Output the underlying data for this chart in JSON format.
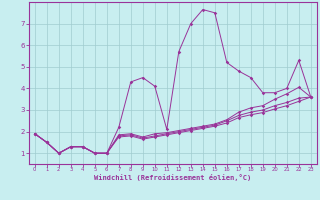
{
  "title": "",
  "xlabel": "Windchill (Refroidissement éolien,°C)",
  "ylabel": "",
  "background_color": "#c8eef0",
  "line_color": "#993399",
  "grid_color": "#a0ccd0",
  "xlim": [
    -0.5,
    23.5
  ],
  "ylim": [
    0.5,
    8.0
  ],
  "xticks": [
    0,
    1,
    2,
    3,
    4,
    5,
    6,
    7,
    8,
    9,
    10,
    11,
    12,
    13,
    14,
    15,
    16,
    17,
    18,
    19,
    20,
    21,
    22,
    23
  ],
  "yticks": [
    1,
    2,
    3,
    4,
    5,
    6,
    7
  ],
  "lines": [
    {
      "x": [
        0,
        1,
        2,
        3,
        4,
        5,
        6,
        7,
        8,
        9,
        10,
        11,
        12,
        13,
        14,
        15,
        16,
        17,
        18,
        19,
        20,
        21,
        22,
        23
      ],
      "y": [
        1.9,
        1.5,
        1.0,
        1.3,
        1.3,
        1.0,
        1.0,
        2.2,
        4.3,
        4.5,
        4.1,
        2.1,
        5.7,
        7.0,
        7.65,
        7.5,
        5.2,
        4.8,
        4.5,
        3.8,
        3.8,
        4.0,
        5.3,
        3.6
      ]
    },
    {
      "x": [
        0,
        1,
        2,
        3,
        4,
        5,
        6,
        7,
        8,
        9,
        10,
        11,
        12,
        13,
        14,
        15,
        16,
        17,
        18,
        19,
        20,
        21,
        22,
        23
      ],
      "y": [
        1.9,
        1.5,
        1.0,
        1.3,
        1.3,
        1.0,
        1.0,
        1.85,
        1.9,
        1.75,
        1.9,
        1.95,
        2.05,
        2.15,
        2.25,
        2.35,
        2.55,
        2.9,
        3.1,
        3.2,
        3.5,
        3.75,
        4.05,
        3.6
      ]
    },
    {
      "x": [
        0,
        1,
        2,
        3,
        4,
        5,
        6,
        7,
        8,
        9,
        10,
        11,
        12,
        13,
        14,
        15,
        16,
        17,
        18,
        19,
        20,
        21,
        22,
        23
      ],
      "y": [
        1.9,
        1.5,
        1.0,
        1.3,
        1.3,
        1.0,
        1.0,
        1.8,
        1.85,
        1.7,
        1.8,
        1.9,
        2.0,
        2.1,
        2.2,
        2.3,
        2.5,
        2.75,
        2.9,
        3.0,
        3.2,
        3.35,
        3.55,
        3.6
      ]
    },
    {
      "x": [
        0,
        1,
        2,
        3,
        4,
        5,
        6,
        7,
        8,
        9,
        10,
        11,
        12,
        13,
        14,
        15,
        16,
        17,
        18,
        19,
        20,
        21,
        22,
        23
      ],
      "y": [
        1.9,
        1.5,
        1.0,
        1.3,
        1.3,
        1.0,
        1.0,
        1.75,
        1.8,
        1.65,
        1.75,
        1.85,
        1.95,
        2.05,
        2.15,
        2.25,
        2.4,
        2.65,
        2.78,
        2.88,
        3.05,
        3.2,
        3.4,
        3.6
      ]
    }
  ]
}
